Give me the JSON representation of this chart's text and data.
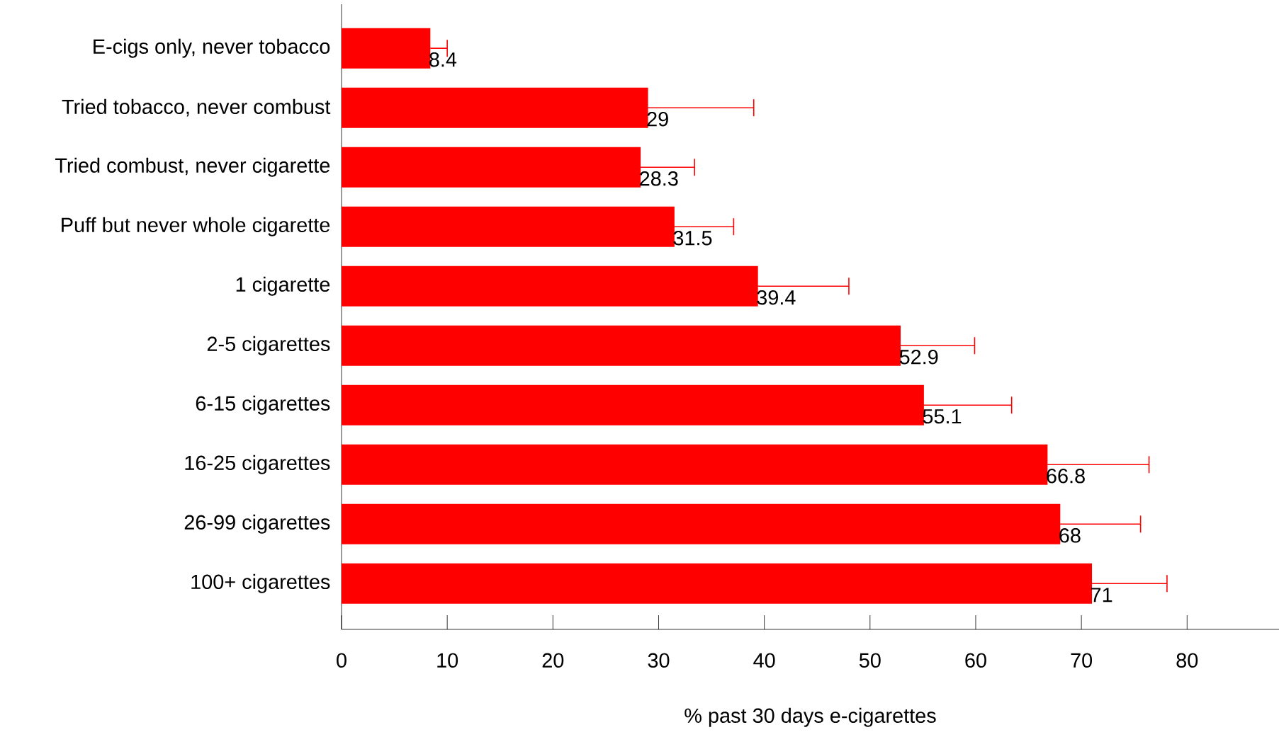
{
  "chart_data": {
    "type": "bar",
    "orientation": "horizontal",
    "xlabel": "% past 30 days e-cigarettes",
    "categories": [
      "E-cigs only, never tobacco",
      "Tried tobacco, never combust",
      "Tried combust, never cigarette",
      "Puff but never whole cigarette",
      "1 cigarette",
      "2-5 cigarettes",
      "6-15 cigarettes",
      "16-25 cigarettes",
      "26-99 cigarettes",
      "100+ cigarettes"
    ],
    "values": [
      8.4,
      29,
      28.3,
      31.5,
      39.4,
      52.9,
      55.1,
      66.8,
      68,
      71
    ],
    "errors": [
      1.6,
      10.0,
      5.1,
      5.6,
      8.6,
      7.0,
      8.3,
      9.6,
      7.6,
      7.1
    ],
    "color": "#ff0000",
    "data_labels": true,
    "grid": false,
    "xlim": [
      0,
      88.7
    ],
    "xticks": [
      0,
      10,
      20,
      30,
      40,
      50,
      60,
      70,
      80
    ]
  }
}
